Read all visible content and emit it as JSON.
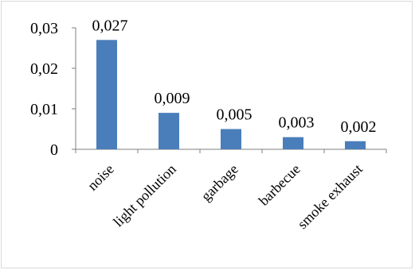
{
  "chart_data": {
    "type": "bar",
    "categories": [
      "noise",
      "light pollution",
      "garbage",
      "barbecue",
      "smoke exhaust"
    ],
    "values": [
      0.027,
      0.009,
      0.005,
      0.003,
      0.002
    ],
    "data_labels": [
      "0,027",
      "0,009",
      "0,005",
      "0,003",
      "0,002"
    ],
    "y_ticks": [
      0,
      0.01,
      0.02,
      0.03
    ],
    "y_tick_labels": [
      "0",
      "0,01",
      "0,02",
      "0,03"
    ],
    "ylim": [
      0,
      0.03
    ],
    "grid": false,
    "legend": "none",
    "title": "",
    "xlabel": "",
    "ylabel": "",
    "bar_color": "#4a7ebb",
    "axis_color": "#7f7f7f"
  }
}
